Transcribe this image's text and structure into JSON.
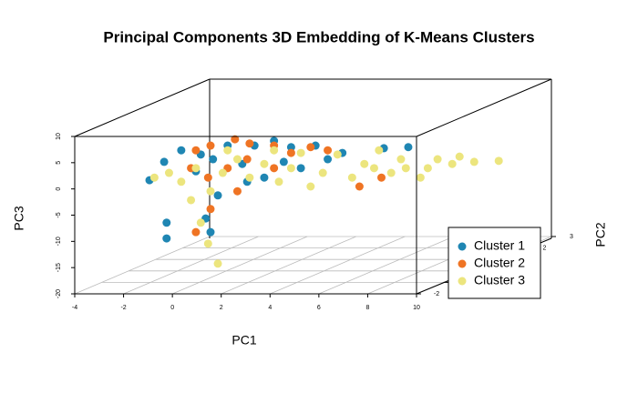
{
  "chart_data": {
    "type": "scatter3d",
    "title": "Principal Components 3D Embedding of K-Means Clusters",
    "x_label": "PC1",
    "y_label": "PC2",
    "z_label": "PC3",
    "xlim": [
      -4,
      10
    ],
    "xticks": [
      -4,
      -2,
      0,
      2,
      4,
      6,
      8,
      10
    ],
    "ylim": [
      -2,
      3
    ],
    "yticks": [
      -2,
      -1,
      0,
      1,
      2,
      3
    ],
    "zlim": [
      -20,
      10
    ],
    "zticks": [
      -20,
      -15,
      -10,
      -5,
      0,
      5,
      10
    ],
    "grid": true,
    "legend_position": "lower right",
    "series": [
      {
        "name": "Cluster 1",
        "color": "#1f86b3",
        "x": [
          -3.7,
          -3.1,
          -2.4,
          -1.8,
          -1.1,
          -0.5,
          0.1,
          0.6,
          1.4,
          2.1,
          3.1,
          3.6,
          4.2,
          5.9,
          6.9,
          -3.0,
          -3.0,
          -1.4,
          -1.2,
          -0.9,
          0.3,
          1.0,
          -1.6,
          1.8,
          2.5
        ],
        "y": [
          0.5,
          0.5,
          0.5,
          0.5,
          0.5,
          0.5,
          0.5,
          0.5,
          0.5,
          0.5,
          0.5,
          0.5,
          0.5,
          0.5,
          0.5,
          0.5,
          0.5,
          0.5,
          0.5,
          0.5,
          0.5,
          0.5,
          0.5,
          0.5,
          0.5
        ],
        "z": [
          -3.8,
          -0.3,
          1.9,
          -2.1,
          0.2,
          2.8,
          -0.7,
          2.8,
          3.7,
          2.5,
          2.8,
          0.2,
          1.4,
          2.3,
          2.5,
          -11.9,
          -14.9,
          -11.1,
          -13.7,
          -6.7,
          -4.1,
          -3.3,
          1.1,
          -0.3,
          -1.5
        ]
      },
      {
        "name": "Cluster 2",
        "color": "#ef7424",
        "x": [
          -1.8,
          -1.2,
          -0.2,
          0.4,
          1.4,
          2.1,
          2.9,
          -1.3,
          -0.5,
          0.3,
          1.4,
          -1.8,
          -1.2,
          -0.1,
          4.9,
          5.8,
          3.6,
          -2.0
        ],
        "y": [
          0.5,
          0.5,
          0.5,
          0.5,
          0.5,
          0.5,
          0.5,
          0.5,
          0.5,
          0.5,
          0.5,
          0.5,
          0.5,
          0.5,
          0.5,
          0.5,
          0.5,
          0.5
        ],
        "z": [
          1.9,
          2.8,
          4.0,
          3.2,
          2.8,
          1.4,
          2.5,
          -3.3,
          -1.5,
          0.2,
          -1.5,
          -13.7,
          -9.3,
          -5.9,
          -5.0,
          -3.3,
          1.9,
          -1.5
        ]
      },
      {
        "name": "Cluster 3",
        "color": "#ece57e",
        "x": [
          -3.5,
          -2.9,
          -2.4,
          -1.8,
          -1.2,
          -0.7,
          -0.1,
          0.4,
          1.0,
          1.6,
          2.1,
          2.9,
          3.4,
          4.0,
          4.6,
          5.1,
          5.7,
          6.2,
          6.8,
          7.4,
          7.7,
          8.1,
          8.7,
          9.0,
          9.6,
          9.5,
          -1.3,
          -0.9,
          -1.6,
          -2.0,
          -0.5,
          1.4,
          2.5,
          5.5,
          6.6
        ],
        "y": [
          0.5,
          0.5,
          0.5,
          0.5,
          0.5,
          0.5,
          0.5,
          0.5,
          0.5,
          0.5,
          0.5,
          0.5,
          0.5,
          0.5,
          0.5,
          0.5,
          0.5,
          0.5,
          0.5,
          0.5,
          0.5,
          0.5,
          0.5,
          0.5,
          0.5,
          1.5,
          0.5,
          0.5,
          0.5,
          0.5,
          0.5,
          0.5,
          0.5,
          0.5,
          0.5
        ],
        "z": [
          -3.3,
          -2.4,
          -4.1,
          -1.5,
          -5.9,
          -2.4,
          0.2,
          -3.3,
          -0.7,
          -4.1,
          -1.5,
          -5.0,
          -2.4,
          1.1,
          -3.3,
          -0.7,
          1.9,
          -2.4,
          -1.5,
          -3.3,
          -1.5,
          0.2,
          -0.7,
          0.7,
          -0.3,
          -2.3,
          -15.9,
          -19.7,
          -11.9,
          -7.6,
          1.9,
          1.9,
          1.4,
          -1.5,
          0.2
        ]
      }
    ]
  }
}
